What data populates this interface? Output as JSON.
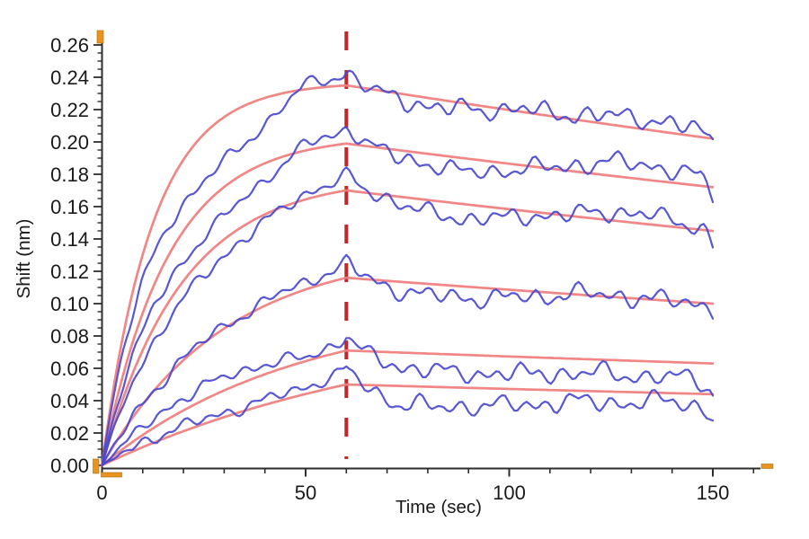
{
  "chart_data": {
    "type": "line",
    "title": "",
    "xlabel": "Time (sec)",
    "ylabel": "Shift (nm)",
    "xlim": [
      0,
      160
    ],
    "ylim": [
      0,
      0.268
    ],
    "x_major_ticks": [
      0,
      50,
      100,
      150
    ],
    "x_minor_step": 10,
    "x_minor_max": 160,
    "y_major_step": 0.02,
    "y_major_max": 0.26,
    "y_minor_step": 0.005,
    "y_minor_max": 0.265,
    "grid": false,
    "legend": "none",
    "association_end_sec": 60,
    "phase_divider": {
      "t": 60,
      "style": "dashed"
    },
    "colors": {
      "data_trace": "#4a49cf",
      "fit_trace": "#f08080",
      "phase_divider": "#c22828",
      "axis": "#2e2e2e",
      "tick_label": "#1a1a1a",
      "axis_end_marker": "#e8941e",
      "background": "#ffffff"
    },
    "fit_t_points": [
      0,
      10,
      20,
      30,
      40,
      50,
      60,
      70,
      80,
      90,
      100,
      110,
      120,
      130,
      140,
      150
    ],
    "series": [
      {
        "id": "trace-1",
        "fit": {
          "k_obs": 0.08,
          "plateau": 0.2369,
          "y_at_60": 0.235,
          "k_dissoc": 0.00168,
          "y_at_150": 0.202,
          "y_points": [
            0,
            0.1305,
            0.1891,
            0.2154,
            0.2272,
            0.2326,
            0.235,
            0.2311,
            0.2272,
            0.2235,
            0.2197,
            0.2161,
            0.2125,
            0.2089,
            0.2054,
            0.202
          ]
        },
        "data": {
          "peak_at_60": 0.242,
          "assoc_dev": -0.03,
          "diss_base": 0.0,
          "diss_wave": 0.005,
          "end_dip": 0.005,
          "spike": 0.003
        }
      },
      {
        "id": "trace-2",
        "fit": {
          "k_obs": 0.062,
          "plateau": 0.2039,
          "y_at_60": 0.199,
          "k_dissoc": 0.00162,
          "y_at_150": 0.172,
          "y_points": [
            0,
            0.0942,
            0.1449,
            0.1722,
            0.1868,
            0.1947,
            0.199,
            0.1958,
            0.1927,
            0.1896,
            0.1865,
            0.1835,
            0.1806,
            0.1777,
            0.1748,
            0.172
          ]
        },
        "data": {
          "peak_at_60": 0.206,
          "assoc_dev": -0.02,
          "diss_base": 0.0,
          "diss_wave": 0.008,
          "end_dip": 0.008,
          "spike": 0.003
        }
      },
      {
        "id": "trace-3",
        "fit": {
          "k_obs": 0.051,
          "plateau": 0.1784,
          "y_at_60": 0.17,
          "k_dissoc": 0.00177,
          "y_at_150": 0.145,
          "y_points": [
            0,
            0.0713,
            0.1141,
            0.1398,
            0.1552,
            0.1645,
            0.17,
            0.167,
            0.1641,
            0.1612,
            0.1584,
            0.1556,
            0.1529,
            0.1502,
            0.1476,
            0.145
          ]
        },
        "data": {
          "peak_at_60": 0.176,
          "assoc_dev": -0.012,
          "diss_base": -0.001,
          "diss_wave": 0.008,
          "end_dip": 0.009,
          "spike": 0.003
        }
      },
      {
        "id": "trace-4",
        "fit": {
          "k_obs": 0.033,
          "plateau": 0.1346,
          "y_at_60": 0.116,
          "k_dissoc": 0.00165,
          "y_at_150": 0.1,
          "y_points": [
            0,
            0.0378,
            0.065,
            0.0846,
            0.0986,
            0.1088,
            0.116,
            0.1141,
            0.1122,
            0.1104,
            0.1086,
            0.1068,
            0.105,
            0.1033,
            0.1016,
            0.1
          ]
        },
        "data": {
          "peak_at_60": 0.124,
          "assoc_dev": 0.0,
          "diss_base": -0.001,
          "diss_wave": 0.004,
          "end_dip": 0.003,
          "spike": 0.004
        }
      },
      {
        "id": "trace-5",
        "fit": {
          "k_obs": 0.021,
          "plateau": 0.0991,
          "y_at_60": 0.071,
          "k_dissoc": 0.00133,
          "y_at_150": 0.063,
          "y_points": [
            0,
            0.0188,
            0.034,
            0.0463,
            0.0563,
            0.0644,
            0.071,
            0.0701,
            0.0691,
            0.0682,
            0.0673,
            0.0664,
            0.0656,
            0.0647,
            0.0638,
            0.063
          ]
        },
        "data": {
          "peak_at_60": 0.08,
          "assoc_dev": 0.008,
          "diss_base": -0.007,
          "diss_wave": 0.003,
          "end_dip": 0.008,
          "spike": 0.002
        }
      },
      {
        "id": "trace-6",
        "fit": {
          "k_obs": 0.013,
          "plateau": 0.0923,
          "y_at_60": 0.05,
          "k_dissoc": 0.00142,
          "y_at_150": 0.044,
          "y_points": [
            0,
            0.0113,
            0.0211,
            0.0298,
            0.0374,
            0.0441,
            0.05,
            0.0493,
            0.0486,
            0.0479,
            0.0472,
            0.0466,
            0.0459,
            0.0453,
            0.0446,
            0.044
          ]
        },
        "data": {
          "peak_at_60": 0.063,
          "assoc_dev": 0.004,
          "diss_base": -0.008,
          "diss_wave": 0.002,
          "end_dip": 0.0065,
          "spike": 0.002
        }
      }
    ],
    "noise": {
      "seed": 20240601,
      "components": [
        {
          "amp": 0.0028,
          "wavelength": 5.2
        },
        {
          "amp": 0.0026,
          "wavelength": 9.7
        },
        {
          "amp": 0.0022,
          "wavelength": 19.0
        }
      ],
      "walk_step": 0.0012,
      "assoc_scale": 0.65,
      "ramp_sec": 8,
      "diss_scale": 1.0
    }
  }
}
